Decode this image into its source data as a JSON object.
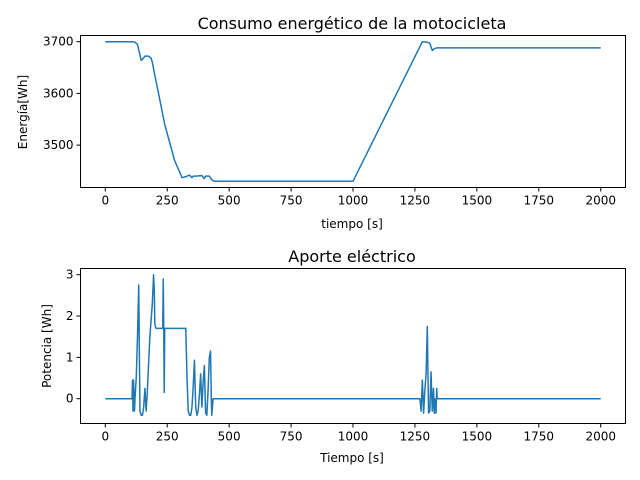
{
  "chart_data": [
    {
      "type": "line",
      "title": "Consumo energético de la motocicleta",
      "xlabel": "tiempo [s]",
      "ylabel": "Energía[Wh]",
      "xlim": [
        -100,
        2100
      ],
      "ylim": [
        3418,
        3712
      ],
      "xticks": [
        0,
        250,
        500,
        750,
        1000,
        1250,
        1500,
        1750,
        2000
      ],
      "yticks": [
        3500,
        3600,
        3700
      ],
      "grid": false,
      "series": [
        {
          "color": "#1f77b4",
          "x": [
            0,
            100,
            110,
            120,
            130,
            145,
            150,
            160,
            175,
            185,
            190,
            200,
            215,
            240,
            280,
            310,
            325,
            340,
            350,
            355,
            365,
            390,
            400,
            405,
            420,
            430,
            440,
            1000,
            1280,
            1300,
            1310,
            1320,
            1330,
            1340,
            2000
          ],
          "values": [
            3700,
            3700,
            3700,
            3699,
            3695,
            3664,
            3666,
            3672,
            3672,
            3668,
            3660,
            3635,
            3600,
            3540,
            3470,
            3437,
            3439,
            3442,
            3437,
            3440,
            3440,
            3441,
            3435,
            3440,
            3440,
            3433,
            3430,
            3430,
            3700,
            3699,
            3697,
            3683,
            3687,
            3688,
            3688
          ]
        }
      ]
    },
    {
      "type": "line",
      "title": "Aporte eléctrico",
      "xlabel": "Tiempo [s]",
      "ylabel": "Potencia [Wh]",
      "xlim": [
        -100,
        2100
      ],
      "ylim": [
        -0.6,
        3.15
      ],
      "xticks": [
        0,
        250,
        500,
        750,
        1000,
        1250,
        1500,
        1750,
        2000
      ],
      "xtick_labels": [
        "0",
        "250",
        "500",
        "750",
        "1000",
        "1250",
        "1500",
        "1750",
        "2000"
      ],
      "yticks": [
        0,
        1,
        2,
        3
      ],
      "grid": false,
      "series": [
        {
          "color": "#1f77b4",
          "x": [
            0,
            100,
            108,
            110,
            112,
            114,
            116,
            118,
            120,
            125,
            130,
            135,
            140,
            145,
            150,
            155,
            160,
            165,
            170,
            180,
            190,
            195,
            198,
            200,
            205,
            210,
            215,
            220,
            225,
            230,
            232,
            234,
            236,
            238,
            240,
            242,
            244,
            250,
            260,
            300,
            325,
            330,
            335,
            340,
            345,
            350,
            355,
            360,
            365,
            370,
            375,
            380,
            385,
            390,
            395,
            400,
            405,
            410,
            415,
            420,
            425,
            428,
            430,
            435,
            1000,
            1270,
            1275,
            1280,
            1285,
            1290,
            1295,
            1300,
            1305,
            1310,
            1315,
            1320,
            1325,
            1328,
            1330,
            1335,
            1338,
            1340,
            1345,
            1348,
            1350,
            1355,
            2000
          ],
          "values": [
            0,
            0,
            0,
            0.45,
            -0.3,
            0.45,
            0.1,
            -0.3,
            0,
            0.5,
            1.5,
            2.75,
            -0.3,
            -0.4,
            -0.4,
            -0.2,
            0.25,
            -0.3,
            0.2,
            1.5,
            2.3,
            3.0,
            2.6,
            1.8,
            1.7,
            1.7,
            1.7,
            1.7,
            1.7,
            1.7,
            1.7,
            2.9,
            1.7,
            0.15,
            1.7,
            1.7,
            1.7,
            1.7,
            1.7,
            1.7,
            1.7,
            0.5,
            -0.3,
            -0.4,
            -0.4,
            -0.2,
            0.3,
            0.93,
            -0.2,
            -0.4,
            -0.3,
            0.1,
            0.6,
            -0.2,
            0.4,
            0.8,
            -0.35,
            -0.4,
            0.2,
            1.0,
            1.15,
            0.0,
            -0.4,
            0,
            0,
            0,
            -0.3,
            0.45,
            -0.35,
            0.2,
            0.6,
            1.75,
            -0.35,
            -0.3,
            0.65,
            -0.3,
            0.25,
            -0.35,
            0.0,
            -0.35,
            0.25,
            0,
            0,
            0,
            0,
            0,
            0
          ]
        }
      ]
    }
  ]
}
